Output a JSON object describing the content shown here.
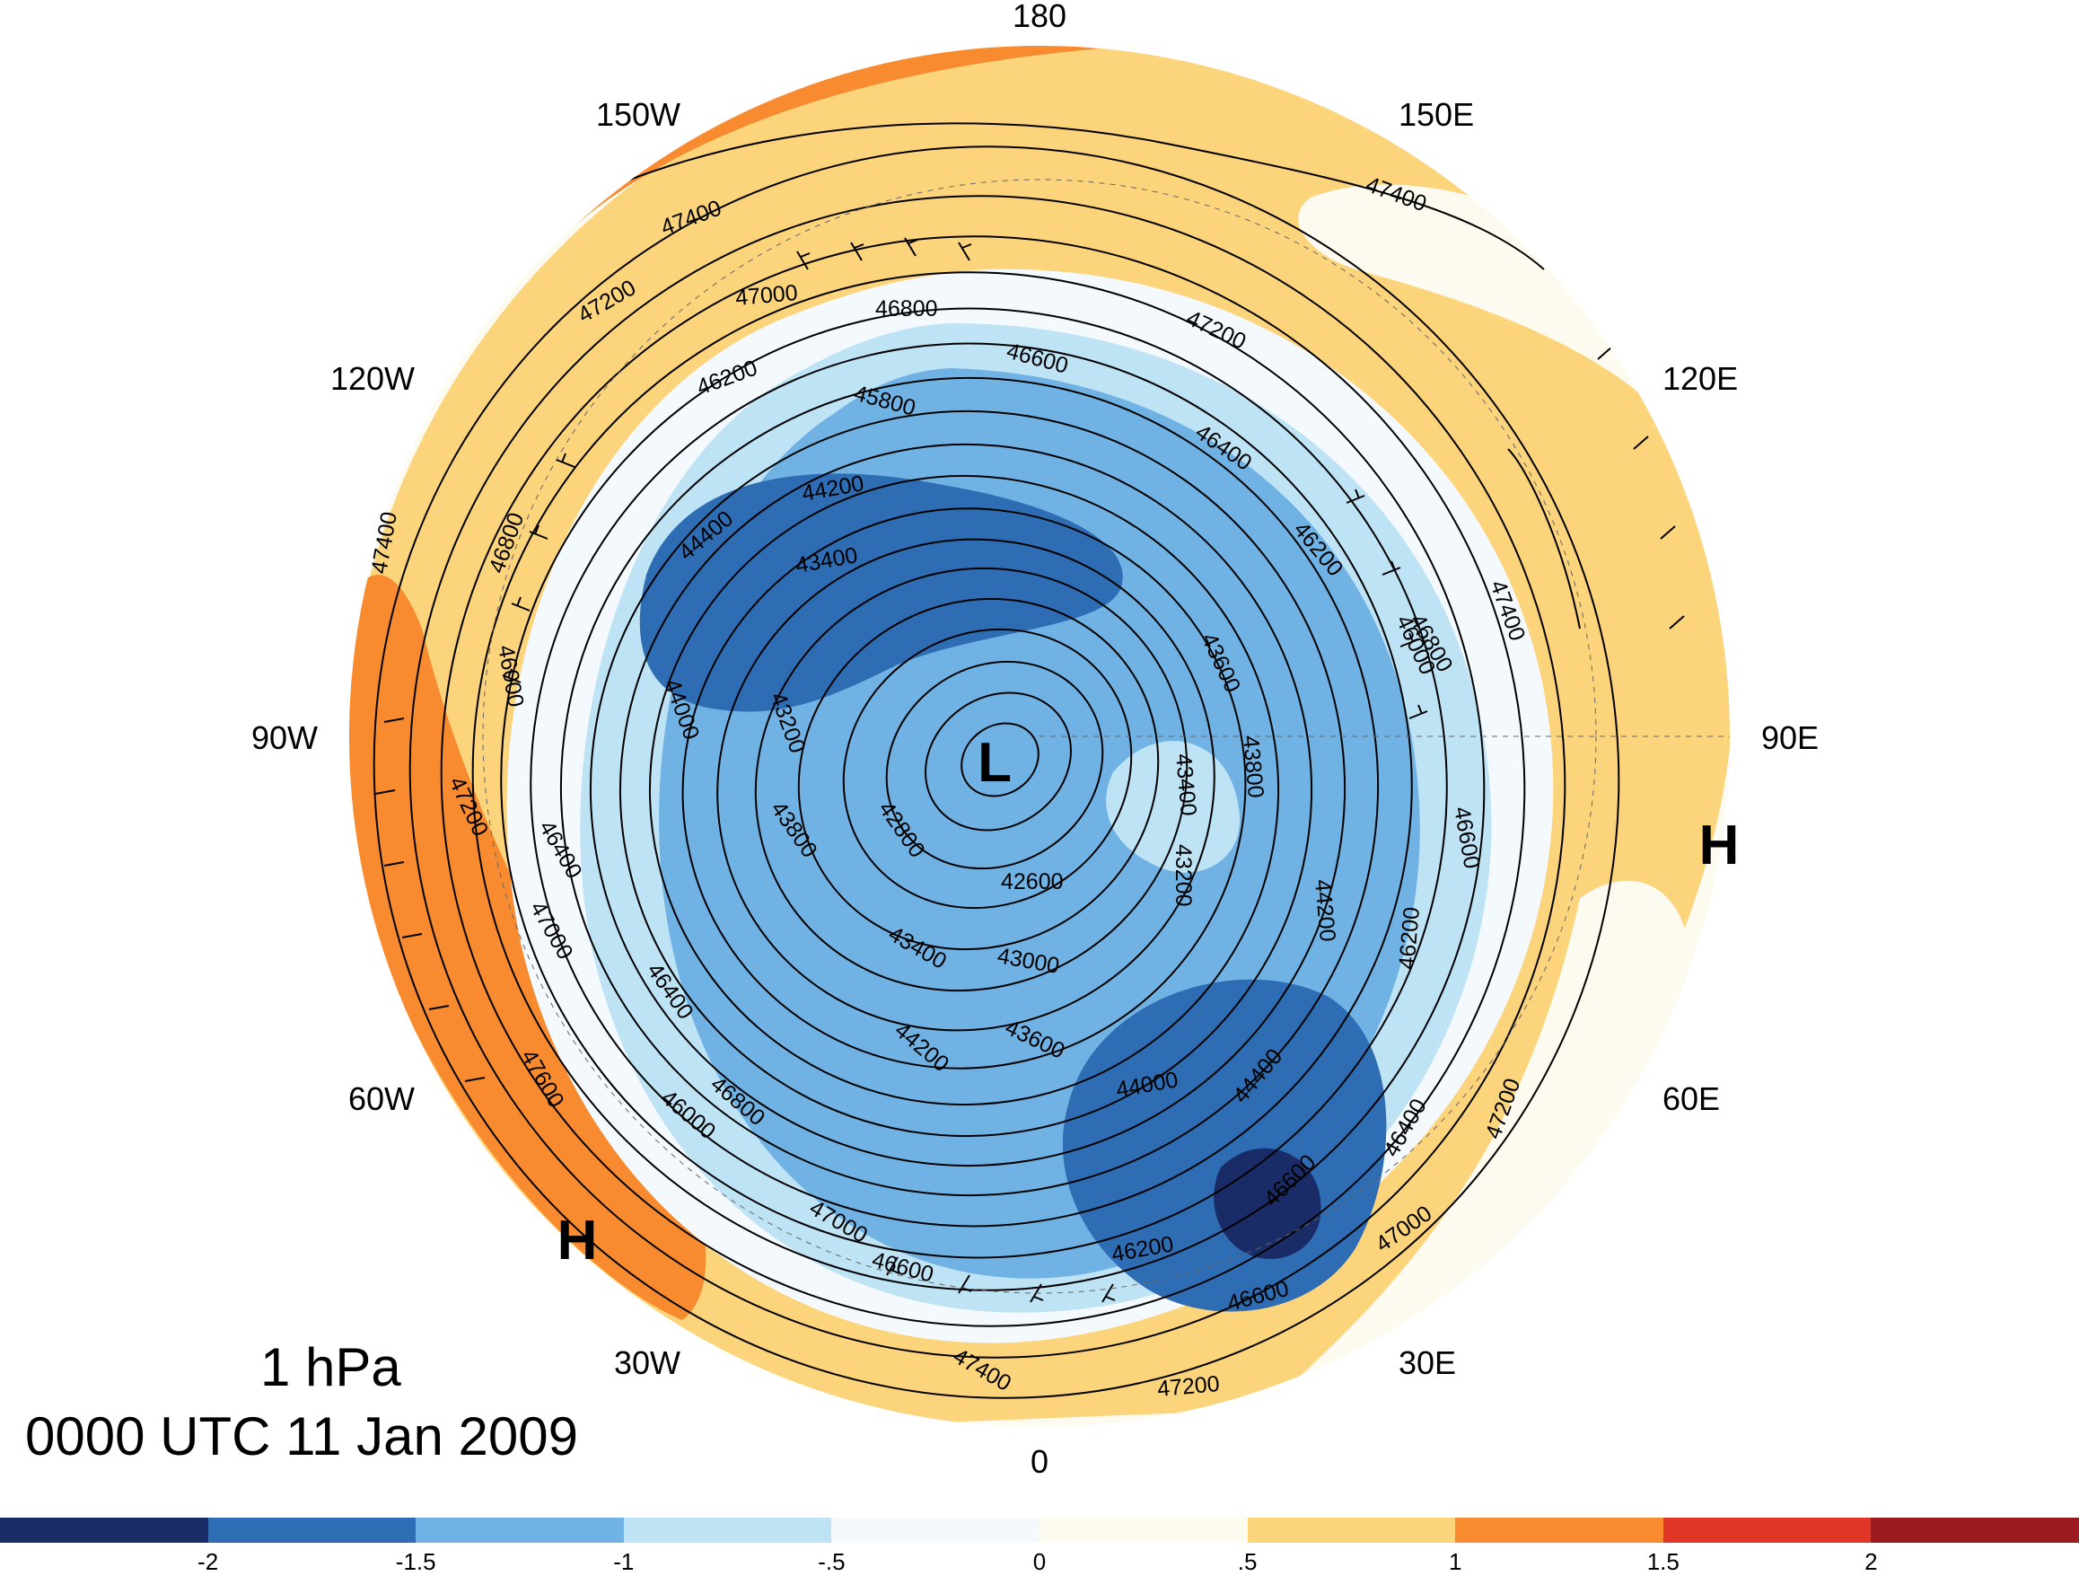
{
  "title": {
    "level": "1 hPa",
    "time": "0000 UTC 11 Jan 2009"
  },
  "longitude_labels": [
    "180",
    "150E",
    "120E",
    "90E",
    "60E",
    "30E",
    "0",
    "30W",
    "60W",
    "90W",
    "120W",
    "150W"
  ],
  "contour_labels": [
    "47400",
    "47200",
    "47000",
    "46800",
    "46600",
    "46400",
    "46200",
    "46000",
    "45800",
    "44400",
    "44200",
    "44000",
    "43800",
    "43600",
    "43400",
    "43200",
    "43000",
    "42800",
    "42600",
    "47600"
  ],
  "highs_lows": {
    "low": "L",
    "high_east": "H",
    "high_south": "H"
  },
  "colorbar": {
    "colors": [
      "#1a2c67",
      "#2e6cb3",
      "#70b2e3",
      "#bde3f5",
      "#f4f9fd",
      "#fdfbf0",
      "#fcd47c",
      "#f88b2f",
      "#e03627",
      "#9b1b1e"
    ],
    "ticks": [
      "-2",
      "-1.5",
      "-1",
      "-.5",
      "0",
      ".5",
      "1",
      "1.5",
      "2"
    ]
  }
}
